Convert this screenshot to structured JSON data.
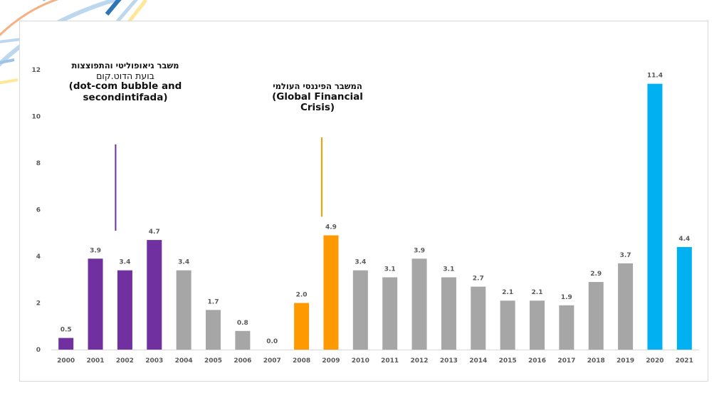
{
  "chart_data": {
    "type": "bar",
    "categories": [
      "2000",
      "2001",
      "2002",
      "2003",
      "2004",
      "2005",
      "2006",
      "2007",
      "2008",
      "2009",
      "2010",
      "2011",
      "2012",
      "2013",
      "2014",
      "2015",
      "2016",
      "2017",
      "2018",
      "2019",
      "2020",
      "2021"
    ],
    "values": [
      0.5,
      3.9,
      3.4,
      4.7,
      3.4,
      1.7,
      0.8,
      0.0,
      2.0,
      4.9,
      3.4,
      3.1,
      3.9,
      3.1,
      2.7,
      2.1,
      2.1,
      1.9,
      2.9,
      3.7,
      11.4,
      4.4
    ],
    "value_labels": [
      "0.5",
      "3.9",
      "3.4",
      "4.7",
      "3.4",
      "1.7",
      "0.8",
      "0.0",
      "2.0",
      "4.9",
      "3.4",
      "3.1",
      "3.9",
      "3.1",
      "2.7",
      "2.1",
      "2.1",
      "1.9",
      "2.9",
      "3.7",
      "11.4",
      "4.4"
    ],
    "bar_colors": [
      "#7030a0",
      "#7030a0",
      "#7030a0",
      "#7030a0",
      "#a6a6a6",
      "#a6a6a6",
      "#a6a6a6",
      "#a6a6a6",
      "#ff9900",
      "#ff9900",
      "#a6a6a6",
      "#a6a6a6",
      "#a6a6a6",
      "#a6a6a6",
      "#a6a6a6",
      "#a6a6a6",
      "#a6a6a6",
      "#a6a6a6",
      "#a6a6a6",
      "#a6a6a6",
      "#00b0f0",
      "#00b0f0"
    ],
    "y_ticks": [
      "0",
      "2",
      "4",
      "6",
      "8",
      "10",
      "12"
    ],
    "ylim": [
      0,
      12
    ],
    "grid": false,
    "title": "",
    "xlabel": "",
    "ylabel": "",
    "annotations": [
      {
        "line1": "משבר גיאופוליטי והתפוצצות",
        "line2": "בועת הדוט.קום",
        "line3": "(dot-com bubble and",
        "line4": "secondintifada)",
        "marker_color": "#7030a0",
        "marker_category": "2002",
        "marker_from": 5.1,
        "marker_to": 8.8
      },
      {
        "line1": "המשבר הפיננסי העולמי",
        "line2": "(Global Financial",
        "line3": "Crisis)",
        "marker_color": "#ff9900",
        "marker_category": "2009",
        "marker_from": 5.7,
        "marker_to": 9.1
      }
    ]
  }
}
